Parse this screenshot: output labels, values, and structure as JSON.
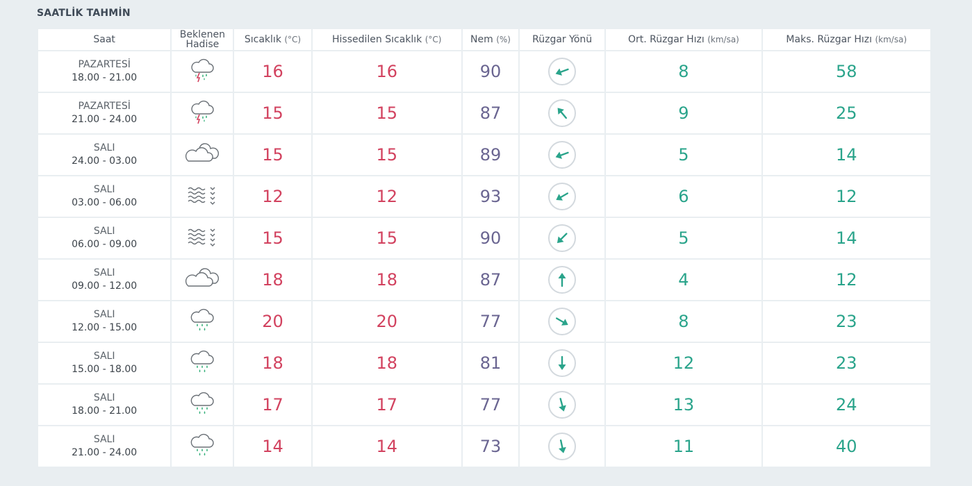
{
  "section_title": "SAATLİK TAHMİN",
  "columns": {
    "time": "Saat",
    "event": "Beklenen Hadise",
    "temp_label": "Sıcaklık",
    "temp_unit": "(°C)",
    "feels_label": "Hissedilen Sıcaklık",
    "feels_unit": "(°C)",
    "humidity_label": "Nem",
    "humidity_unit": "(%)",
    "wind_dir": "Rüzgar Yönü",
    "avg_wind_label": "Ort. Rüzgar Hızı",
    "avg_wind_unit": "(km/sa)",
    "max_wind_label": "Maks. Rüzgar Hızı",
    "max_wind_unit": "(km/sa)"
  },
  "colors": {
    "temperature": "#d2425f",
    "humidity": "#6a6591",
    "wind": "#2aa48b"
  },
  "rows": [
    {
      "day": "PAZARTESİ",
      "range": "18.00 - 21.00",
      "icon": "thunderstorm-rain-icon",
      "temp": "16",
      "feels": "16",
      "humidity": "90",
      "wind_dir_deg": 250,
      "avg_wind": "8",
      "max_wind": "58"
    },
    {
      "day": "PAZARTESİ",
      "range": "21.00 - 24.00",
      "icon": "thunderstorm-rain-icon",
      "temp": "15",
      "feels": "15",
      "humidity": "87",
      "wind_dir_deg": 320,
      "avg_wind": "9",
      "max_wind": "25"
    },
    {
      "day": "SALI",
      "range": "24.00 - 03.00",
      "icon": "cloudy-icon",
      "temp": "15",
      "feels": "15",
      "humidity": "89",
      "wind_dir_deg": 250,
      "avg_wind": "5",
      "max_wind": "14"
    },
    {
      "day": "SALI",
      "range": "03.00 - 06.00",
      "icon": "fog-icon",
      "temp": "12",
      "feels": "12",
      "humidity": "93",
      "wind_dir_deg": 240,
      "avg_wind": "6",
      "max_wind": "12"
    },
    {
      "day": "SALI",
      "range": "06.00 - 09.00",
      "icon": "fog-icon",
      "temp": "15",
      "feels": "15",
      "humidity": "90",
      "wind_dir_deg": 225,
      "avg_wind": "5",
      "max_wind": "14"
    },
    {
      "day": "SALI",
      "range": "09.00 - 12.00",
      "icon": "cloudy-icon",
      "temp": "18",
      "feels": "18",
      "humidity": "87",
      "wind_dir_deg": 0,
      "avg_wind": "4",
      "max_wind": "12"
    },
    {
      "day": "SALI",
      "range": "12.00 - 15.00",
      "icon": "rain-icon",
      "temp": "20",
      "feels": "20",
      "humidity": "77",
      "wind_dir_deg": 120,
      "avg_wind": "8",
      "max_wind": "23"
    },
    {
      "day": "SALI",
      "range": "15.00 - 18.00",
      "icon": "rain-icon",
      "temp": "18",
      "feels": "18",
      "humidity": "81",
      "wind_dir_deg": 180,
      "avg_wind": "12",
      "max_wind": "23"
    },
    {
      "day": "SALI",
      "range": "18.00 - 21.00",
      "icon": "rain-icon",
      "temp": "17",
      "feels": "17",
      "humidity": "77",
      "wind_dir_deg": 165,
      "avg_wind": "13",
      "max_wind": "24"
    },
    {
      "day": "SALI",
      "range": "21.00 - 24.00",
      "icon": "rain-icon",
      "temp": "14",
      "feels": "14",
      "humidity": "73",
      "wind_dir_deg": 168,
      "avg_wind": "11",
      "max_wind": "40"
    }
  ]
}
